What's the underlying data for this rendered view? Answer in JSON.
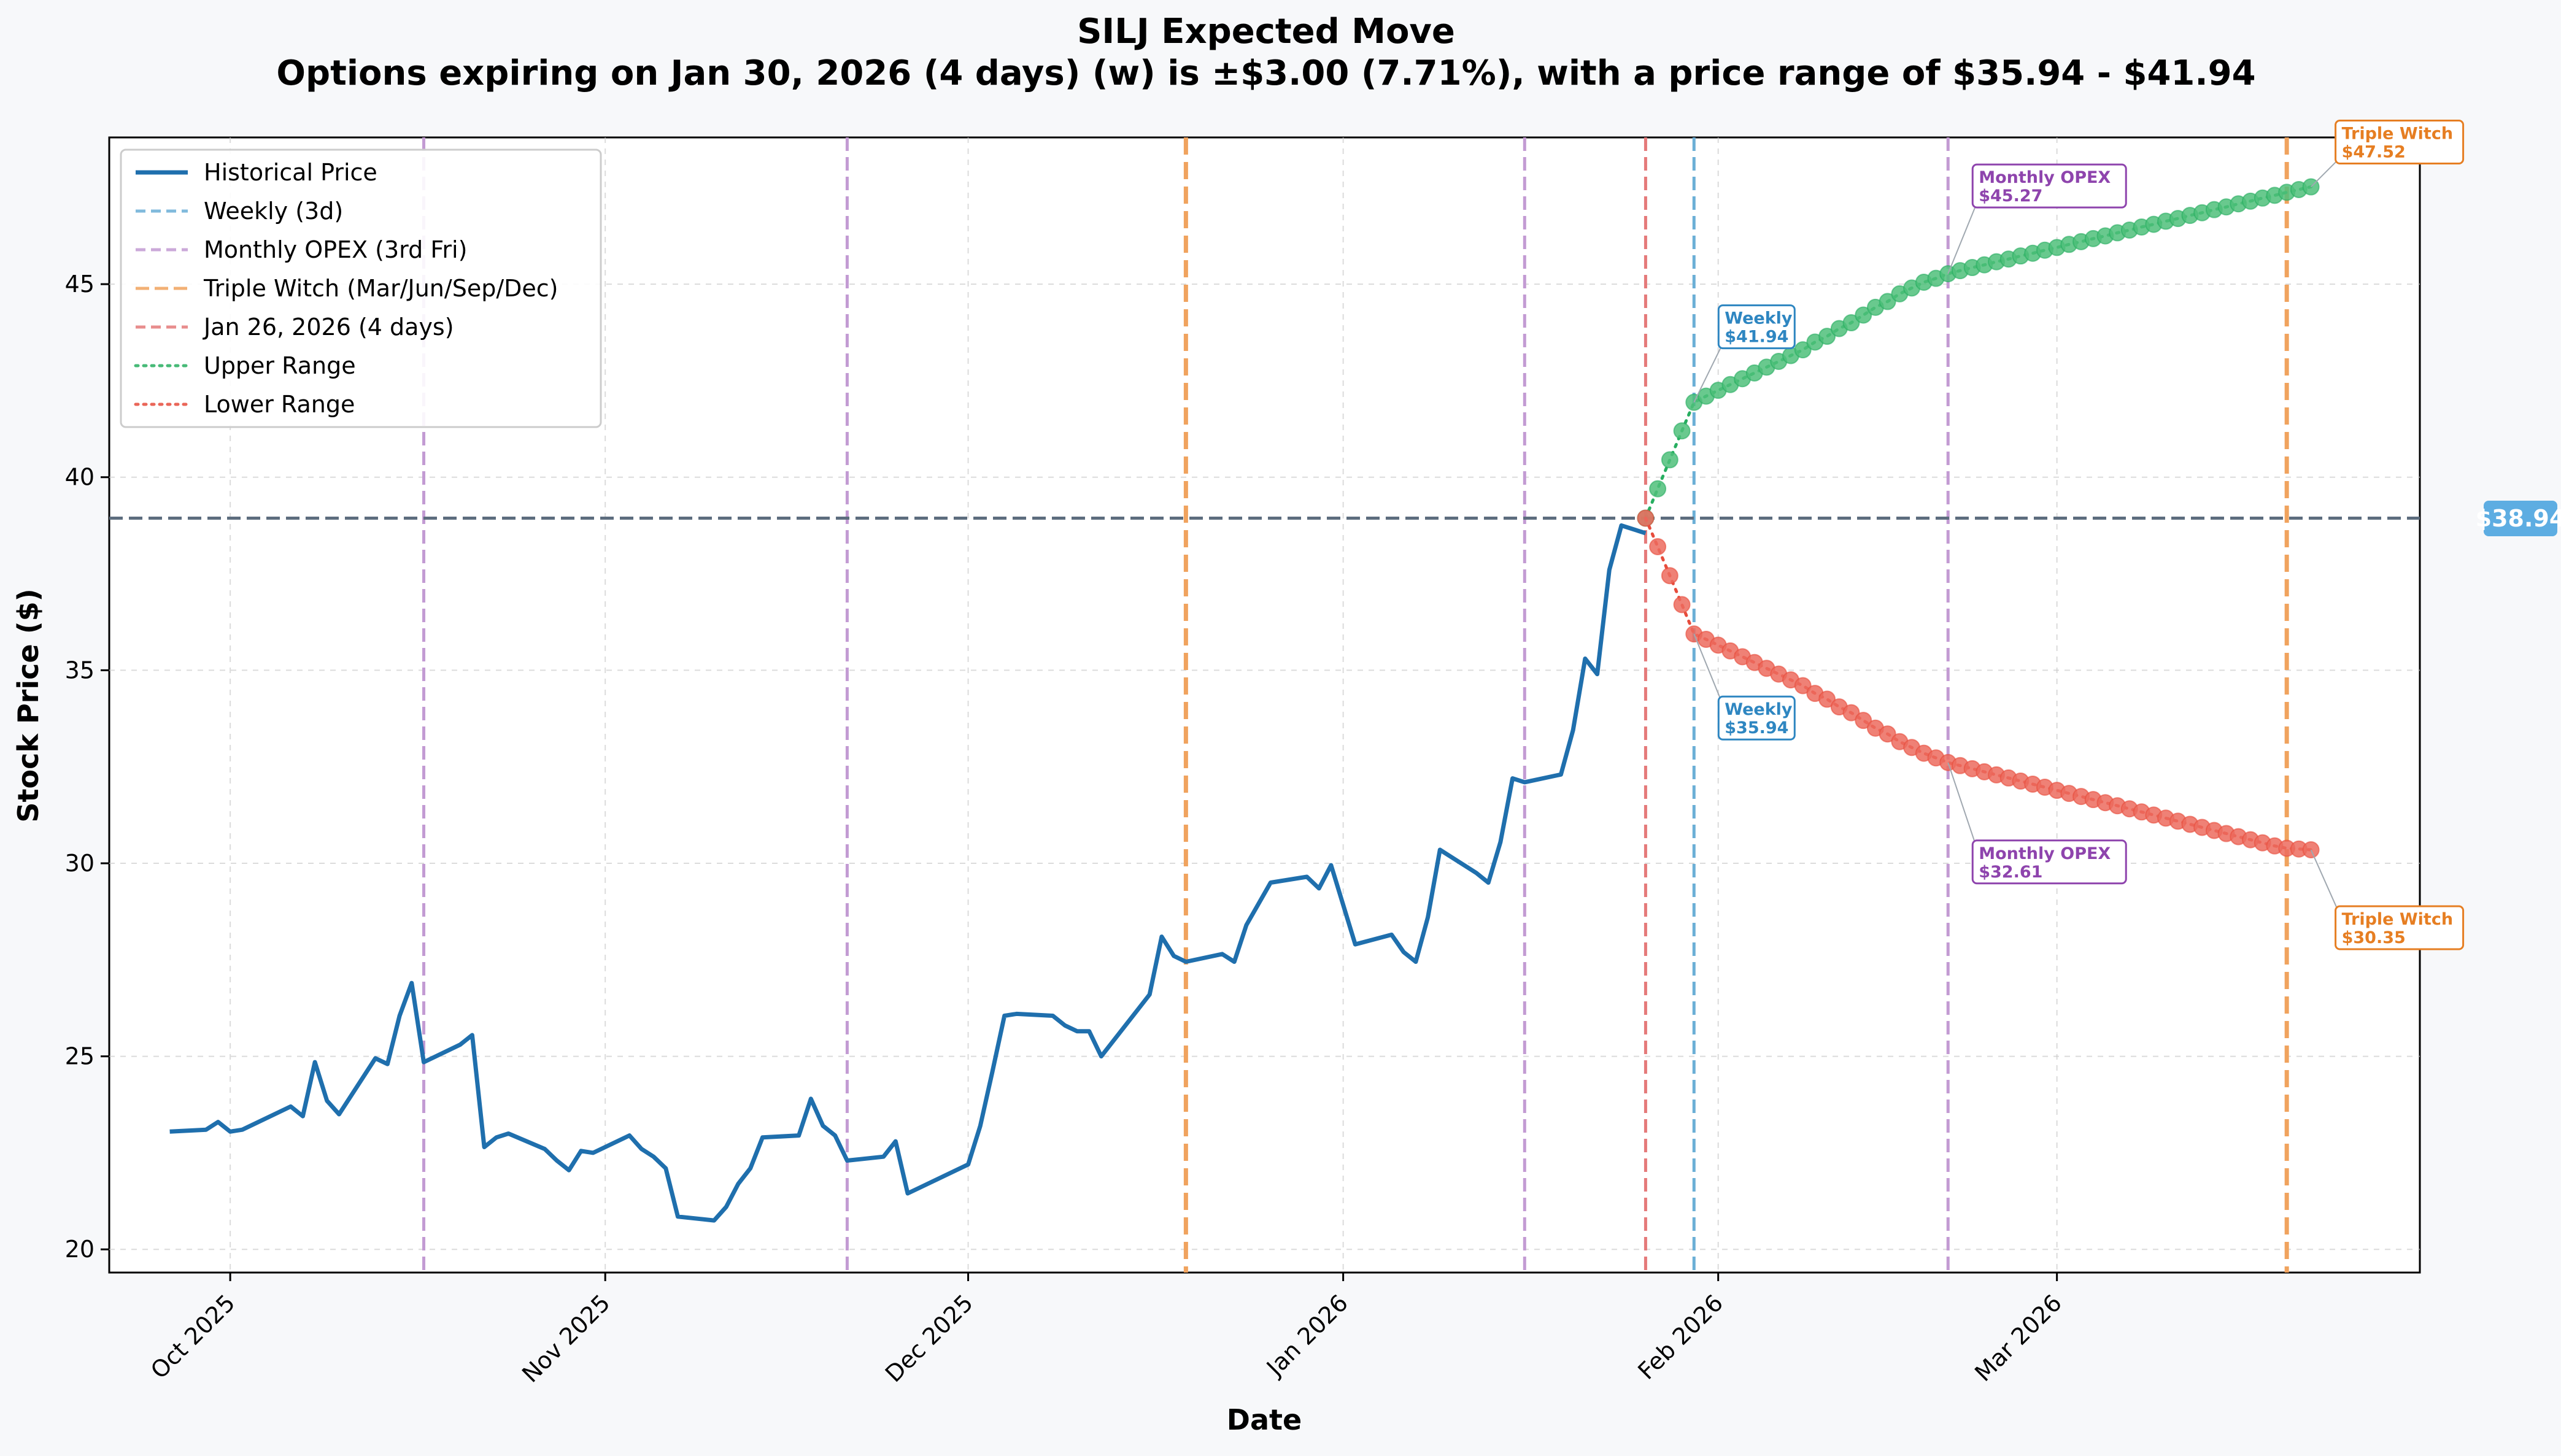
{
  "chart_data": {
    "type": "line",
    "title": "SILJ Expected Move",
    "subtitle": "Options expiring on Jan 30, 2026 (4 days) (w) is ±$3.00 (7.71%), with a price range of $35.94 - $41.94",
    "xlabel": "Date",
    "ylabel": "Stock Price ($)",
    "xlim": [
      "2025-09-21",
      "2026-03-31"
    ],
    "ylim": [
      19.4,
      48.8
    ],
    "grid": true,
    "legend_position": "top-left",
    "x_ticks": [
      {
        "date": "2025-10-01",
        "label": "Oct 2025"
      },
      {
        "date": "2025-11-01",
        "label": "Nov 2025"
      },
      {
        "date": "2025-12-01",
        "label": "Dec 2025"
      },
      {
        "date": "2026-01-01",
        "label": "Jan 2026"
      },
      {
        "date": "2026-02-01",
        "label": "Feb 2026"
      },
      {
        "date": "2026-03-01",
        "label": "Mar 2026"
      }
    ],
    "y_ticks": [
      20,
      25,
      30,
      35,
      40,
      45
    ],
    "colors": {
      "historical": "#1f6fad",
      "weekly": "#6bafd6",
      "monthly": "#c39bd3",
      "triple": "#f0a35e",
      "current": "#e57a7a",
      "upper": "#27ae60",
      "lower": "#e74c3c",
      "upper_marker": "#4fbf7a",
      "lower_marker": "#ec6b5e",
      "price_line": "#5d6d7e",
      "price_badge": "#5dade2",
      "weekly_label": "#2e86c1",
      "monthly_label": "#8e44ad",
      "triple_label": "#e67e22"
    },
    "legend": [
      {
        "label": "Historical Price",
        "key": "historical",
        "style": "solid"
      },
      {
        "label": "Weekly (3d)",
        "key": "weekly",
        "style": "dashed"
      },
      {
        "label": "Monthly OPEX (3rd Fri)",
        "key": "monthly",
        "style": "dashed"
      },
      {
        "label": "Triple Witch (Mar/Jun/Sep/Dec)",
        "key": "triple",
        "style": "dashed"
      },
      {
        "label": "Jan 26, 2026 (4 days)",
        "key": "current",
        "style": "dashed"
      },
      {
        "label": "Upper Range",
        "key": "upper",
        "style": "dotted"
      },
      {
        "label": "Lower Range",
        "key": "lower",
        "style": "dotted"
      }
    ],
    "current_price": 38.94,
    "current_price_label": "$38.94",
    "vertical_lines": [
      {
        "date": "2025-10-17",
        "kind": "monthly"
      },
      {
        "date": "2025-11-21",
        "kind": "monthly"
      },
      {
        "date": "2025-12-19",
        "kind": "triple"
      },
      {
        "date": "2026-01-16",
        "kind": "monthly"
      },
      {
        "date": "2026-01-26",
        "kind": "current"
      },
      {
        "date": "2026-01-30",
        "kind": "weekly"
      },
      {
        "date": "2026-02-20",
        "kind": "monthly"
      },
      {
        "date": "2026-03-20",
        "kind": "triple"
      }
    ],
    "historical": {
      "name": "Historical Price",
      "points": [
        [
          "2025-09-26",
          23.05
        ],
        [
          "2025-09-29",
          23.1
        ],
        [
          "2025-09-30",
          23.3
        ],
        [
          "2025-10-01",
          23.05
        ],
        [
          "2025-10-02",
          23.1
        ],
        [
          "2025-10-06",
          23.7
        ],
        [
          "2025-10-07",
          23.45
        ],
        [
          "2025-10-08",
          24.85
        ],
        [
          "2025-10-09",
          23.85
        ],
        [
          "2025-10-10",
          23.5
        ],
        [
          "2025-10-13",
          24.95
        ],
        [
          "2025-10-14",
          24.8
        ],
        [
          "2025-10-15",
          26.05
        ],
        [
          "2025-10-16",
          26.9
        ],
        [
          "2025-10-17",
          24.85
        ],
        [
          "2025-10-20",
          25.3
        ],
        [
          "2025-10-21",
          25.55
        ],
        [
          "2025-10-22",
          22.65
        ],
        [
          "2025-10-23",
          22.9
        ],
        [
          "2025-10-24",
          23.0
        ],
        [
          "2025-10-27",
          22.6
        ],
        [
          "2025-10-28",
          22.3
        ],
        [
          "2025-10-29",
          22.05
        ],
        [
          "2025-10-30",
          22.55
        ],
        [
          "2025-10-31",
          22.5
        ],
        [
          "2025-11-03",
          22.95
        ],
        [
          "2025-11-04",
          22.6
        ],
        [
          "2025-11-05",
          22.4
        ],
        [
          "2025-11-06",
          22.1
        ],
        [
          "2025-11-07",
          20.85
        ],
        [
          "2025-11-10",
          20.75
        ],
        [
          "2025-11-11",
          21.1
        ],
        [
          "2025-11-12",
          21.7
        ],
        [
          "2025-11-13",
          22.1
        ],
        [
          "2025-11-14",
          22.9
        ],
        [
          "2025-11-17",
          22.95
        ],
        [
          "2025-11-18",
          23.9
        ],
        [
          "2025-11-19",
          23.2
        ],
        [
          "2025-11-20",
          22.95
        ],
        [
          "2025-11-21",
          22.3
        ],
        [
          "2025-11-24",
          22.4
        ],
        [
          "2025-11-25",
          22.8
        ],
        [
          "2025-11-26",
          21.45
        ],
        [
          "2025-11-27",
          21.6
        ],
        [
          "2025-12-01",
          22.2
        ],
        [
          "2025-12-02",
          23.2
        ],
        [
          "2025-12-03",
          24.6
        ],
        [
          "2025-12-04",
          26.05
        ],
        [
          "2025-12-05",
          26.1
        ],
        [
          "2025-12-08",
          26.05
        ],
        [
          "2025-12-09",
          25.8
        ],
        [
          "2025-12-10",
          25.65
        ],
        [
          "2025-12-11",
          25.65
        ],
        [
          "2025-12-12",
          25.0
        ],
        [
          "2025-12-15",
          26.2
        ],
        [
          "2025-12-16",
          26.6
        ],
        [
          "2025-12-17",
          28.1
        ],
        [
          "2025-12-18",
          27.6
        ],
        [
          "2025-12-19",
          27.45
        ],
        [
          "2025-12-22",
          27.65
        ],
        [
          "2025-12-23",
          27.45
        ],
        [
          "2025-12-24",
          28.4
        ],
        [
          "2025-12-26",
          29.5
        ],
        [
          "2025-12-29",
          29.65
        ],
        [
          "2025-12-30",
          29.35
        ],
        [
          "2025-12-31",
          29.95
        ],
        [
          "2026-01-02",
          27.9
        ],
        [
          "2026-01-05",
          28.15
        ],
        [
          "2026-01-06",
          27.7
        ],
        [
          "2026-01-07",
          27.45
        ],
        [
          "2026-01-08",
          28.6
        ],
        [
          "2026-01-09",
          30.35
        ],
        [
          "2026-01-12",
          29.75
        ],
        [
          "2026-01-13",
          29.5
        ],
        [
          "2026-01-14",
          30.55
        ],
        [
          "2026-01-15",
          32.2
        ],
        [
          "2026-01-16",
          32.1
        ],
        [
          "2026-01-19",
          32.3
        ],
        [
          "2026-01-20",
          33.45
        ],
        [
          "2026-01-21",
          35.3
        ],
        [
          "2026-01-22",
          34.9
        ],
        [
          "2026-01-23",
          37.6
        ],
        [
          "2026-01-24",
          38.75
        ],
        [
          "2026-01-26",
          38.55
        ]
      ]
    },
    "upper_range": {
      "name": "Upper Range",
      "points": [
        [
          "2026-01-26",
          38.94
        ],
        [
          "2026-01-27",
          39.7
        ],
        [
          "2026-01-28",
          40.45
        ],
        [
          "2026-01-29",
          41.2
        ],
        [
          "2026-01-30",
          41.94
        ],
        [
          "2026-01-31",
          42.1
        ],
        [
          "2026-02-01",
          42.25
        ],
        [
          "2026-02-02",
          42.4
        ],
        [
          "2026-02-03",
          42.55
        ],
        [
          "2026-02-04",
          42.7
        ],
        [
          "2026-02-05",
          42.85
        ],
        [
          "2026-02-06",
          43.0
        ],
        [
          "2026-02-07",
          43.15
        ],
        [
          "2026-02-08",
          43.3
        ],
        [
          "2026-02-09",
          43.5
        ],
        [
          "2026-02-10",
          43.65
        ],
        [
          "2026-02-11",
          43.85
        ],
        [
          "2026-02-12",
          44.0
        ],
        [
          "2026-02-13",
          44.2
        ],
        [
          "2026-02-14",
          44.4
        ],
        [
          "2026-02-15",
          44.55
        ],
        [
          "2026-02-16",
          44.75
        ],
        [
          "2026-02-17",
          44.9
        ],
        [
          "2026-02-18",
          45.05
        ],
        [
          "2026-02-19",
          45.15
        ],
        [
          "2026-02-20",
          45.27
        ],
        [
          "2026-02-21",
          45.35
        ],
        [
          "2026-02-22",
          45.43
        ],
        [
          "2026-02-23",
          45.5
        ],
        [
          "2026-02-24",
          45.58
        ],
        [
          "2026-02-25",
          45.65
        ],
        [
          "2026-02-26",
          45.73
        ],
        [
          "2026-02-27",
          45.8
        ],
        [
          "2026-02-28",
          45.88
        ],
        [
          "2026-03-01",
          45.95
        ],
        [
          "2026-03-02",
          46.03
        ],
        [
          "2026-03-03",
          46.1
        ],
        [
          "2026-03-04",
          46.18
        ],
        [
          "2026-03-05",
          46.25
        ],
        [
          "2026-03-06",
          46.33
        ],
        [
          "2026-03-07",
          46.4
        ],
        [
          "2026-03-08",
          46.48
        ],
        [
          "2026-03-09",
          46.55
        ],
        [
          "2026-03-10",
          46.63
        ],
        [
          "2026-03-11",
          46.7
        ],
        [
          "2026-03-12",
          46.78
        ],
        [
          "2026-03-13",
          46.85
        ],
        [
          "2026-03-14",
          46.93
        ],
        [
          "2026-03-15",
          47.0
        ],
        [
          "2026-03-16",
          47.08
        ],
        [
          "2026-03-17",
          47.15
        ],
        [
          "2026-03-18",
          47.23
        ],
        [
          "2026-03-19",
          47.3
        ],
        [
          "2026-03-20",
          47.38
        ],
        [
          "2026-03-21",
          47.45
        ],
        [
          "2026-03-22",
          47.52
        ]
      ]
    },
    "lower_range": {
      "name": "Lower Range",
      "points": [
        [
          "2026-01-26",
          38.94
        ],
        [
          "2026-01-27",
          38.2
        ],
        [
          "2026-01-28",
          37.45
        ],
        [
          "2026-01-29",
          36.7
        ],
        [
          "2026-01-30",
          35.94
        ],
        [
          "2026-01-31",
          35.8
        ],
        [
          "2026-02-01",
          35.65
        ],
        [
          "2026-02-02",
          35.5
        ],
        [
          "2026-02-03",
          35.35
        ],
        [
          "2026-02-04",
          35.2
        ],
        [
          "2026-02-05",
          35.05
        ],
        [
          "2026-02-06",
          34.9
        ],
        [
          "2026-02-07",
          34.75
        ],
        [
          "2026-02-08",
          34.6
        ],
        [
          "2026-02-09",
          34.4
        ],
        [
          "2026-02-10",
          34.25
        ],
        [
          "2026-02-11",
          34.05
        ],
        [
          "2026-02-12",
          33.9
        ],
        [
          "2026-02-13",
          33.7
        ],
        [
          "2026-02-14",
          33.5
        ],
        [
          "2026-02-15",
          33.35
        ],
        [
          "2026-02-16",
          33.15
        ],
        [
          "2026-02-17",
          33.0
        ],
        [
          "2026-02-18",
          32.85
        ],
        [
          "2026-02-19",
          32.73
        ],
        [
          "2026-02-20",
          32.61
        ],
        [
          "2026-02-21",
          32.53
        ],
        [
          "2026-02-22",
          32.45
        ],
        [
          "2026-02-23",
          32.37
        ],
        [
          "2026-02-24",
          32.29
        ],
        [
          "2026-02-25",
          32.21
        ],
        [
          "2026-02-26",
          32.13
        ],
        [
          "2026-02-27",
          32.05
        ],
        [
          "2026-02-28",
          31.97
        ],
        [
          "2026-03-01",
          31.89
        ],
        [
          "2026-03-02",
          31.81
        ],
        [
          "2026-03-03",
          31.73
        ],
        [
          "2026-03-04",
          31.65
        ],
        [
          "2026-03-05",
          31.57
        ],
        [
          "2026-03-06",
          31.49
        ],
        [
          "2026-03-07",
          31.41
        ],
        [
          "2026-03-08",
          31.33
        ],
        [
          "2026-03-09",
          31.25
        ],
        [
          "2026-03-10",
          31.17
        ],
        [
          "2026-03-11",
          31.09
        ],
        [
          "2026-03-12",
          31.01
        ],
        [
          "2026-03-13",
          30.93
        ],
        [
          "2026-03-14",
          30.85
        ],
        [
          "2026-03-15",
          30.77
        ],
        [
          "2026-03-16",
          30.69
        ],
        [
          "2026-03-17",
          30.61
        ],
        [
          "2026-03-18",
          30.53
        ],
        [
          "2026-03-19",
          30.45
        ],
        [
          "2026-03-20",
          30.39
        ],
        [
          "2026-03-21",
          30.37
        ],
        [
          "2026-03-22",
          30.35
        ]
      ]
    },
    "annotations": [
      {
        "kind": "weekly",
        "line1": "Weekly",
        "line2": "$41.94",
        "date": "2026-01-30",
        "value": 41.94,
        "side": "upper"
      },
      {
        "kind": "weekly",
        "line1": "Weekly",
        "line2": "$35.94",
        "date": "2026-01-30",
        "value": 35.94,
        "side": "lower"
      },
      {
        "kind": "monthly",
        "line1": "Monthly OPEX",
        "line2": "$45.27",
        "date": "2026-02-20",
        "value": 45.27,
        "side": "upper"
      },
      {
        "kind": "monthly",
        "line1": "Monthly OPEX",
        "line2": "$32.61",
        "date": "2026-02-20",
        "value": 32.61,
        "side": "lower"
      },
      {
        "kind": "triple",
        "line1": "Triple Witch",
        "line2": "$47.52",
        "date": "2026-03-22",
        "value": 47.52,
        "side": "upper"
      },
      {
        "kind": "triple",
        "line1": "Triple Witch",
        "line2": "$30.35",
        "date": "2026-03-22",
        "value": 30.35,
        "side": "lower"
      }
    ]
  }
}
